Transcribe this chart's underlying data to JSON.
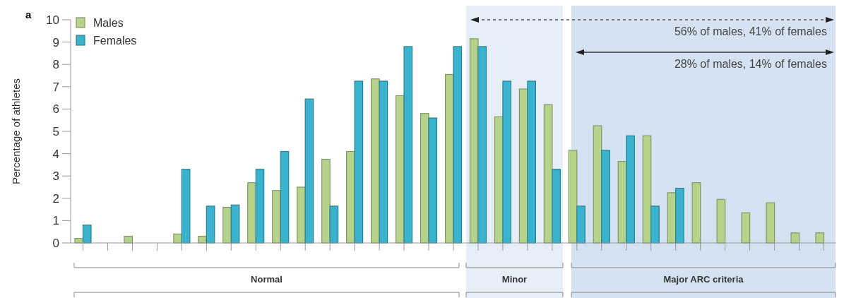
{
  "chart_data": {
    "type": "bar",
    "title": "a",
    "ylabel": "Percentage of athletes",
    "categories": [
      null,
      null,
      null,
      null,
      null,
      null,
      null,
      null,
      null,
      null,
      null,
      null,
      null,
      null,
      null,
      null,
      null,
      null,
      null,
      null,
      null,
      null,
      null,
      null,
      null,
      null,
      null,
      null,
      null,
      null,
      null
    ],
    "series": [
      {
        "name": "Males",
        "color": "#b5d38a",
        "values": [
          0.2,
          null,
          0.3,
          null,
          0.4,
          0.3,
          1.6,
          2.7,
          2.35,
          2.5,
          3.75,
          4.1,
          7.35,
          6.6,
          5.8,
          7.55,
          9.15,
          5.65,
          6.9,
          6.2,
          4.15,
          5.25,
          3.65,
          4.8,
          2.25,
          2.7,
          1.95,
          1.35,
          1.8,
          0.45,
          0.45
        ]
      },
      {
        "name": "Females",
        "color": "#3bb3cf",
        "values": [
          0.8,
          null,
          null,
          null,
          3.3,
          1.65,
          1.7,
          3.3,
          4.1,
          6.45,
          1.65,
          7.25,
          7.25,
          8.8,
          5.6,
          8.8,
          8.8,
          7.25,
          7.25,
          3.3,
          1.65,
          4.15,
          4.8,
          1.65,
          2.45,
          null,
          null,
          null,
          null,
          null,
          null
        ]
      }
    ],
    "ylim": [
      0,
      10
    ],
    "yticks": [
      0,
      1,
      2,
      3,
      4,
      5,
      6,
      7,
      8,
      9,
      10
    ],
    "grid": false,
    "legend": "top left",
    "annotations": [
      "56% of males, 41% of females",
      "28% of males, 14% of females",
      "Normal",
      "Minor",
      "Major ARC criteria"
    ]
  }
}
